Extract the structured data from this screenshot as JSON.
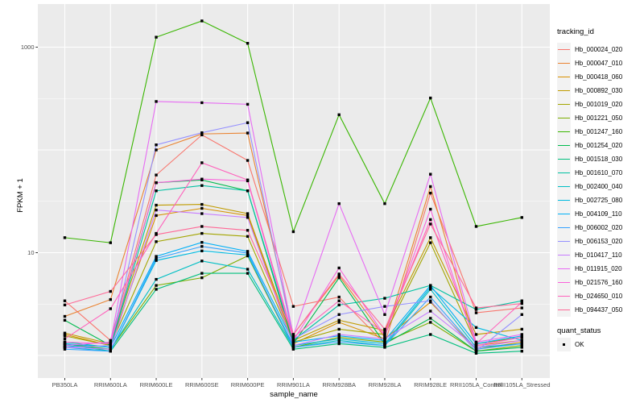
{
  "figure": {
    "x_axis": {
      "label": "sample_name"
    },
    "y_axis": {
      "label": "FPKM + 1",
      "ticks": [
        {
          "label": "1000",
          "value": 1000
        },
        {
          "label": "10",
          "value": 10
        }
      ]
    },
    "legend": {
      "tracking_title": "tracking_id",
      "quant_title": "quant_status",
      "quant_items": [
        {
          "label": "OK"
        }
      ]
    }
  },
  "colors": {
    "panel_bg": "#EBEBEB",
    "grid": "#FFFFFF",
    "key_bg": "#F2F2F2",
    "axis_text": "#4D4D4D",
    "point": "#000000"
  },
  "chart_data": {
    "type": "line",
    "title": "",
    "xlabel": "sample_name",
    "ylabel": "FPKM + 1",
    "y_scale": "log10",
    "ylim": [
      0.65,
      2400
    ],
    "y_major_breaks": [
      1,
      10,
      100,
      1000
    ],
    "y_minor_breaks": [
      3.162,
      31.62,
      316.2
    ],
    "y_tick_labels": [
      "1000",
      "10"
    ],
    "y_tick_values": [
      1000,
      10
    ],
    "grid": true,
    "legend_position": "right",
    "point_shape": "small-black-square",
    "point_legend_label": "OK",
    "categories": [
      "PB350LA",
      "RRIM600LA",
      "RRIM600LE",
      "RRIM600SE",
      "RRIM600PE",
      "RRIM901LA",
      "RRIM928BA",
      "RRIM928LA",
      "RRIM928LE",
      "RRII105LA_Control",
      "RRII105LA_Stressed"
    ],
    "series": [
      {
        "name": "Hb_000024_020",
        "color": "#F8766D",
        "values": [
          3.4,
          1.4,
          57,
          140,
          79,
          3.0,
          3.7,
          1.3,
          38,
          2.6,
          2.9
        ]
      },
      {
        "name": "Hb_000047_010",
        "color": "#EA8331",
        "values": [
          2.4,
          3.5,
          100,
          143,
          146,
          1.6,
          6.0,
          1.5,
          44,
          1.25,
          1.4
        ]
      },
      {
        "name": "Hb_000418_060",
        "color": "#D89000",
        "values": [
          1.6,
          1.25,
          23,
          27,
          23,
          1.3,
          2.1,
          1.45,
          3.3,
          1.15,
          1.35
        ]
      },
      {
        "name": "Hb_000892_030",
        "color": "#C09B00",
        "values": [
          1.65,
          1.3,
          29,
          29.5,
          24,
          1.4,
          2.2,
          1.75,
          14,
          1.6,
          1.8
        ]
      },
      {
        "name": "Hb_001019_020",
        "color": "#A3A500",
        "values": [
          1.55,
          1.25,
          12.8,
          15.4,
          14.4,
          1.35,
          1.8,
          1.6,
          12.5,
          1.3,
          1.5
        ]
      },
      {
        "name": "Hb_001221_050",
        "color": "#7CAE00",
        "values": [
          1.3,
          1.15,
          4.8,
          5.7,
          9.3,
          1.2,
          1.5,
          1.35,
          2.1,
          1.1,
          1.25
        ]
      },
      {
        "name": "Hb_001247_160",
        "color": "#39B600",
        "values": [
          14,
          12.5,
          1250,
          1800,
          1090,
          16,
          220,
          30,
          320,
          18,
          22
        ]
      },
      {
        "name": "Hb_001254_020",
        "color": "#00BB4E",
        "values": [
          2.2,
          1.25,
          48,
          51,
          40,
          1.3,
          5.7,
          1.3,
          2.3,
          1.1,
          1.2
        ]
      },
      {
        "name": "Hb_001518_030",
        "color": "#00BF7D",
        "values": [
          1.3,
          1.1,
          4.4,
          6.3,
          6.3,
          1.15,
          1.3,
          1.2,
          1.6,
          1.05,
          1.1
        ]
      },
      {
        "name": "Hb_001610_070",
        "color": "#00C1A3",
        "values": [
          1.35,
          1.2,
          40,
          45,
          40,
          1.4,
          3.1,
          3.6,
          4.8,
          2.8,
          3.4
        ]
      },
      {
        "name": "Hb_002400_040",
        "color": "#00BFC4",
        "values": [
          1.25,
          1.15,
          5.5,
          8.3,
          6.9,
          1.2,
          1.4,
          1.25,
          4.4,
          1.2,
          1.3
        ]
      },
      {
        "name": "Hb_002725_080",
        "color": "#00BAE0",
        "values": [
          1.2,
          1.1,
          8.4,
          10.4,
          9.5,
          1.25,
          1.45,
          1.3,
          4.6,
          1.87,
          1.4
        ]
      },
      {
        "name": "Hb_004109_110",
        "color": "#00B0F6",
        "values": [
          1.3,
          1.2,
          9.2,
          12.6,
          10.3,
          1.35,
          1.55,
          1.4,
          4.8,
          1.3,
          1.55
        ]
      },
      {
        "name": "Hb_006002_020",
        "color": "#35A2FF",
        "values": [
          1.15,
          1.1,
          8.8,
          11.5,
          9.9,
          1.2,
          1.35,
          1.25,
          3.7,
          1.15,
          1.3
        ]
      },
      {
        "name": "Hb_006153_020",
        "color": "#9590FF",
        "values": [
          1.2,
          1.25,
          112,
          147,
          184,
          1.45,
          2.5,
          3.0,
          3.4,
          1.1,
          2.5
        ]
      },
      {
        "name": "Hb_010417_110",
        "color": "#C77CFF",
        "values": [
          1.2,
          1.15,
          26,
          24,
          22,
          1.25,
          1.6,
          1.45,
          2.7,
          1.2,
          1.4
        ]
      },
      {
        "name": "Hb_011915_020",
        "color": "#E76BF3",
        "values": [
          1.25,
          1.35,
          296,
          288,
          278,
          1.55,
          30,
          2.5,
          58,
          1.35,
          1.6
        ]
      },
      {
        "name": "Hb_021576_160",
        "color": "#FA62DB",
        "values": [
          1.35,
          1.3,
          48,
          52,
          50,
          1.4,
          7.1,
          1.55,
          26.5,
          1.25,
          1.5
        ]
      },
      {
        "name": "Hb_024650_010",
        "color": "#FF62BC",
        "values": [
          1.45,
          2.85,
          15.4,
          75,
          51,
          1.5,
          3.4,
          1.65,
          21,
          1.3,
          3.3
        ]
      },
      {
        "name": "Hb_094437_050",
        "color": "#FF6A98",
        "values": [
          3.1,
          4.2,
          15,
          18,
          16.5,
          1.6,
          6.2,
          1.8,
          19,
          2.9,
          3.2
        ]
      }
    ]
  }
}
